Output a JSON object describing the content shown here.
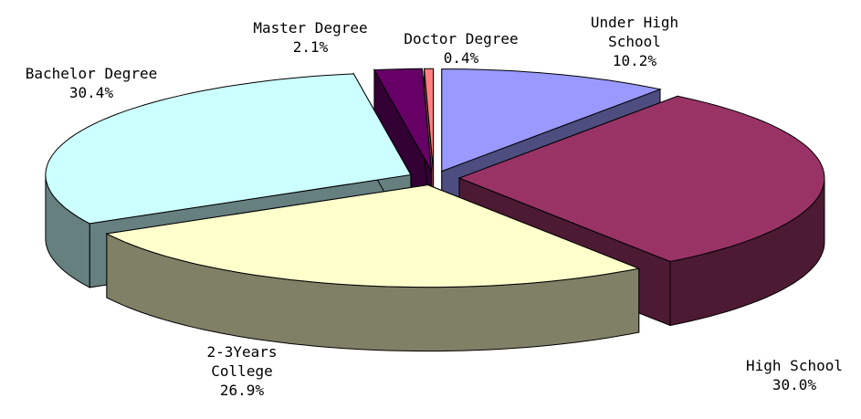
{
  "chart_data": {
    "type": "pie",
    "categories": [
      "Under High School",
      "High School",
      "2-3Years College",
      "Bachelor Degree",
      "Master Degree",
      "Doctor Degree"
    ],
    "values": [
      10.2,
      30.0,
      26.9,
      30.4,
      2.1,
      0.4
    ],
    "value_labels": [
      "10.2%",
      "30.0%",
      "26.9%",
      "30.4%",
      "2.1%",
      "0.4%"
    ],
    "colors": [
      "#9999ff",
      "#993366",
      "#ffffcc",
      "#ccffff",
      "#660066",
      "#ff8080"
    ]
  }
}
